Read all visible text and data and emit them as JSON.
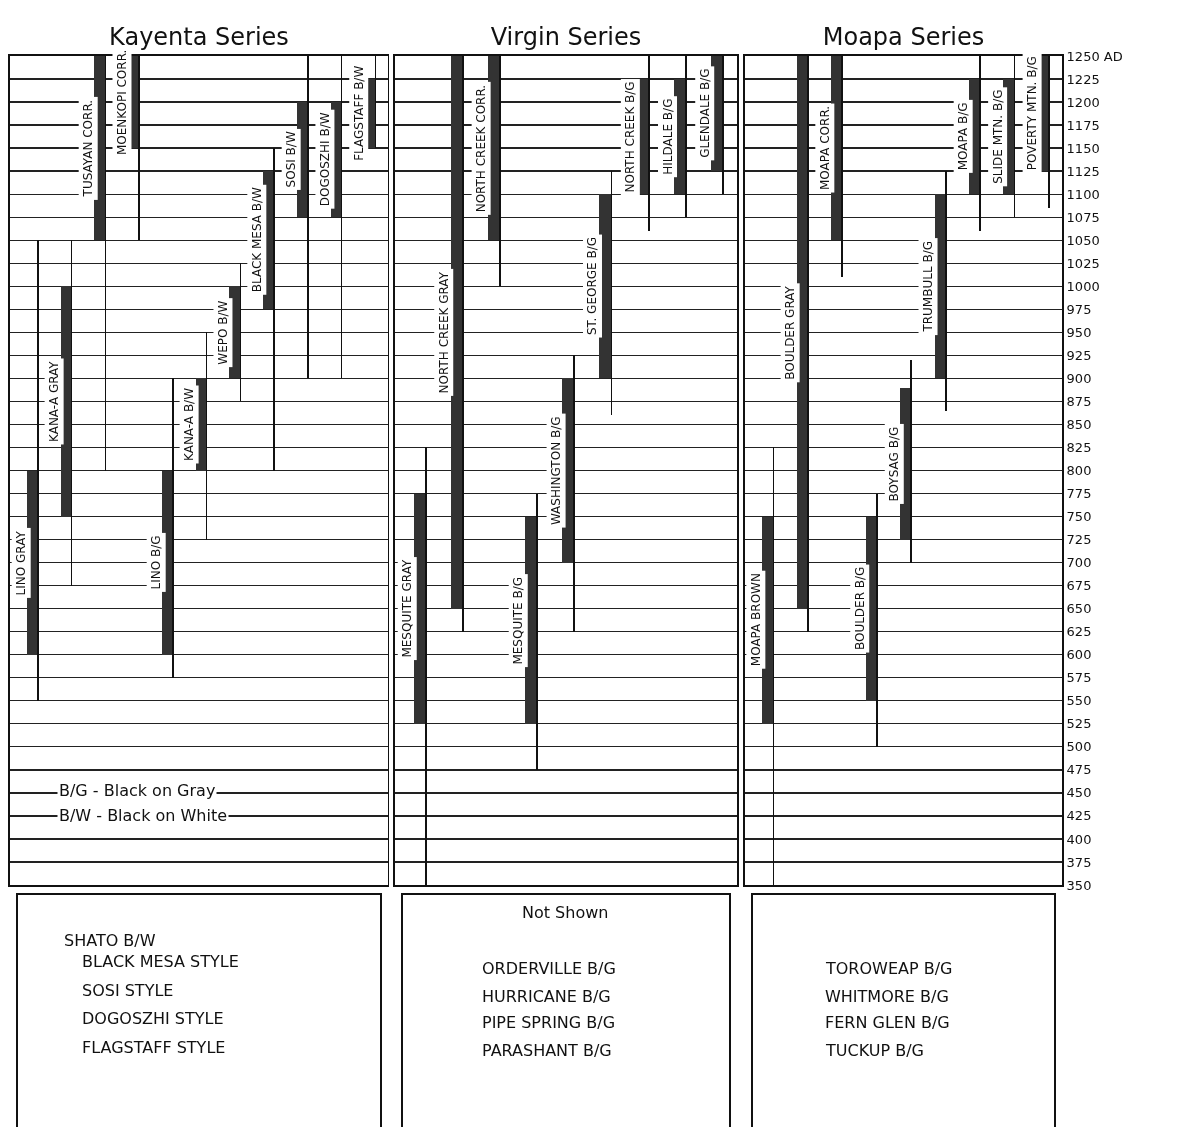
{
  "chart_data": [
    {
      "type": "bar",
      "title": "Kayenta Series",
      "categories": [
        "LINO GRAY",
        "KANA-A GRAY",
        "TUSAYAN CORR.",
        "MOENKOPI CORR.",
        "LINO B/G",
        "KANA-A B/W",
        "WEPO B/W",
        "BLACK MESA B/W",
        "SOSI B/W",
        "DOGOSZHI B/W",
        "FLAGSTAFF B/W"
      ],
      "series": [
        {
          "color": "#111111",
          "base": [
            550,
            675,
            800,
            1050,
            575,
            725,
            875,
            800,
            900,
            900,
            1150
          ],
          "values": [
            500,
            375,
            450,
            200,
            325,
            225,
            150,
            350,
            350,
            350,
            100
          ]
        },
        {
          "color": "#333333",
          "base": [
            600,
            750,
            1050,
            1150,
            600,
            800,
            900,
            975,
            1075,
            1075,
            1150
          ],
          "values": [
            200,
            250,
            200,
            100,
            200,
            100,
            100,
            150,
            125,
            125,
            75
          ]
        }
      ],
      "ylim": [
        350,
        1250
      ],
      "yticks": [
        350,
        375,
        400,
        425,
        450,
        475,
        500,
        525,
        550,
        575,
        600,
        625,
        650,
        675,
        700,
        725,
        750,
        775,
        800,
        825,
        850,
        875,
        900,
        925,
        950,
        975,
        1000,
        1025,
        1050,
        1075,
        1100,
        1125,
        1150,
        1175,
        1200,
        1225
      ],
      "grid": "y",
      "tick_labels": false,
      "annotations": [
        "B/G - Black on Gray",
        "B/W - Black on White",
        "SHATO B/W",
        "BLACK MESA STYLE",
        "SOSI STYLE",
        "DOGOSZHI STYLE",
        "FLAGSTAFF STYLE"
      ]
    },
    {
      "type": "bar",
      "title": "Virgin Series",
      "categories": [
        "MESQUITE GRAY",
        "NORTH CREEK GRAY",
        "NORTH CREEK CORR.",
        "MESQUITE B/G",
        "WASHINGTON B/G",
        "ST. GEORGE B/G",
        "NORTH CREEK B/G",
        "HILDALE B/G",
        "GLENDALE B/G"
      ],
      "series": [
        {
          "color": "#111111",
          "base": [
            350,
            625,
            1000,
            475,
            625,
            860,
            1060,
            1075,
            1100
          ],
          "values": [
            475,
            625,
            250,
            300,
            300,
            265,
            190,
            175,
            150
          ]
        },
        {
          "color": "#333333",
          "base": [
            525,
            650,
            1050,
            525,
            700,
            900,
            1100,
            1100,
            1125
          ],
          "values": [
            250,
            600,
            200,
            225,
            200,
            200,
            125,
            125,
            125
          ]
        }
      ],
      "ylim": [
        350,
        1250
      ],
      "yticks": [
        350,
        375,
        400,
        425,
        450,
        475,
        500,
        525,
        550,
        575,
        600,
        625,
        650,
        675,
        700,
        725,
        750,
        775,
        800,
        825,
        850,
        875,
        900,
        925,
        950,
        975,
        1000,
        1025,
        1050,
        1075,
        1100,
        1125,
        1150,
        1175,
        1200,
        1225
      ],
      "grid": "y",
      "tick_labels": false,
      "annotations": [
        "Not Shown",
        "ORDERVILLE B/G",
        "HURRICANE B/G",
        "PIPE SPRING B/G",
        "PARASHANT B/G"
      ]
    },
    {
      "type": "bar",
      "title": "Moapa Series",
      "categories": [
        "MOAPA BROWN",
        "BOULDER GRAY",
        "MOAPA CORR.",
        "BOULDER B/G",
        "BOYSAG B/G",
        "TRUMBULL B/G",
        "MOAPA B/G",
        "SLIDE MTN. B/G",
        "POVERTY MTN. B/G"
      ],
      "series": [
        {
          "color": "#111111",
          "base": [
            350,
            625,
            1010,
            500,
            700,
            865,
            1060,
            1075,
            1085
          ],
          "values": [
            475,
            625,
            240,
            275,
            220,
            260,
            190,
            175,
            165
          ]
        },
        {
          "color": "#333333",
          "base": [
            525,
            650,
            1050,
            550,
            725,
            900,
            1100,
            1100,
            1125
          ],
          "values": [
            225,
            600,
            200,
            200,
            165,
            200,
            125,
            125,
            125
          ]
        }
      ],
      "ylim": [
        350,
        1250
      ],
      "yticks": [
        350,
        375,
        400,
        425,
        450,
        475,
        500,
        525,
        550,
        575,
        600,
        625,
        650,
        675,
        700,
        725,
        750,
        775,
        800,
        825,
        850,
        875,
        900,
        925,
        950,
        975,
        1000,
        1025,
        1050,
        1075,
        1100,
        1125,
        1150,
        1175,
        1200,
        1225,
        {
          "value": 1250,
          "label": "1250 AD"
        }
      ],
      "grid": "y",
      "tick_labels": "y",
      "annotations": [
        "TOROWEAP B/G",
        "WHITMORE B/G",
        "FERN GLEN B/G",
        "TUCKUP B/G"
      ]
    }
  ]
}
